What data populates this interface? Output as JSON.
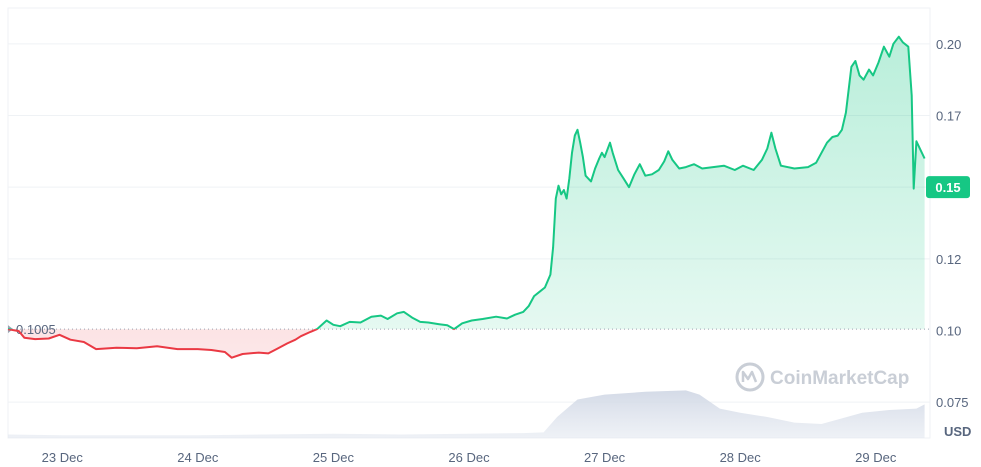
{
  "chart_data": {
    "type": "line",
    "currency_label": "USD",
    "watermark": "CoinMarketCap",
    "reference_value": 0.1005,
    "reference_label": "0.1005",
    "current_value": 0.15,
    "current_label": "0.15",
    "ylim": [
      0.0625,
      0.2125
    ],
    "y_ticks": [
      {
        "value": 0.075,
        "label": "0.075"
      },
      {
        "value": 0.1,
        "label": "0.10"
      },
      {
        "value": 0.125,
        "label": "0.12"
      },
      {
        "value": 0.15,
        "label": "0.15"
      },
      {
        "value": 0.175,
        "label": "0.17"
      },
      {
        "value": 0.2,
        "label": "0.20"
      }
    ],
    "x_range": [
      22.6,
      29.4
    ],
    "x_ticks": [
      {
        "value": 23,
        "label": "23 Dec"
      },
      {
        "value": 24,
        "label": "24 Dec"
      },
      {
        "value": 25,
        "label": "25 Dec"
      },
      {
        "value": 26,
        "label": "26 Dec"
      },
      {
        "value": 27,
        "label": "27 Dec"
      },
      {
        "value": 28,
        "label": "28 Dec"
      },
      {
        "value": 29,
        "label": "29 Dec"
      }
    ],
    "series": [
      {
        "values": [
          [
            22.6,
            0.1005
          ],
          [
            22.68,
            0.0998
          ],
          [
            22.72,
            0.0975
          ],
          [
            22.8,
            0.097
          ],
          [
            22.9,
            0.0972
          ],
          [
            22.98,
            0.0985
          ],
          [
            23.06,
            0.0968
          ],
          [
            23.16,
            0.096
          ],
          [
            23.25,
            0.0935
          ],
          [
            23.4,
            0.094
          ],
          [
            23.55,
            0.0938
          ],
          [
            23.7,
            0.0945
          ],
          [
            23.85,
            0.0935
          ],
          [
            24.0,
            0.0935
          ],
          [
            24.1,
            0.0932
          ],
          [
            24.2,
            0.0925
          ],
          [
            24.25,
            0.0905
          ],
          [
            24.33,
            0.0918
          ],
          [
            24.45,
            0.0923
          ],
          [
            24.52,
            0.092
          ],
          [
            24.58,
            0.0935
          ],
          [
            24.66,
            0.0955
          ],
          [
            24.72,
            0.0968
          ],
          [
            24.76,
            0.098
          ],
          [
            24.83,
            0.0995
          ],
          [
            24.88,
            0.1005
          ],
          [
            24.95,
            0.1035
          ],
          [
            25.0,
            0.102
          ],
          [
            25.05,
            0.1015
          ],
          [
            25.12,
            0.103
          ],
          [
            25.2,
            0.1028
          ],
          [
            25.28,
            0.1048
          ],
          [
            25.35,
            0.1052
          ],
          [
            25.4,
            0.104
          ],
          [
            25.47,
            0.106
          ],
          [
            25.52,
            0.1065
          ],
          [
            25.58,
            0.1045
          ],
          [
            25.64,
            0.103
          ],
          [
            25.7,
            0.1028
          ],
          [
            25.78,
            0.1022
          ],
          [
            25.84,
            0.1018
          ],
          [
            25.89,
            0.1005
          ],
          [
            25.95,
            0.1025
          ],
          [
            26.02,
            0.1035
          ],
          [
            26.1,
            0.104
          ],
          [
            26.2,
            0.1048
          ],
          [
            26.28,
            0.1042
          ],
          [
            26.34,
            0.1055
          ],
          [
            26.4,
            0.1065
          ],
          [
            26.44,
            0.1085
          ],
          [
            26.48,
            0.112
          ],
          [
            26.52,
            0.1135
          ],
          [
            26.56,
            0.115
          ],
          [
            26.6,
            0.1195
          ],
          [
            26.62,
            0.129
          ],
          [
            26.64,
            0.146
          ],
          [
            26.66,
            0.1505
          ],
          [
            26.68,
            0.1475
          ],
          [
            26.7,
            0.149
          ],
          [
            26.72,
            0.146
          ],
          [
            26.74,
            0.153
          ],
          [
            26.76,
            0.162
          ],
          [
            26.78,
            0.168
          ],
          [
            26.8,
            0.17
          ],
          [
            26.82,
            0.1655
          ],
          [
            26.84,
            0.1605
          ],
          [
            26.86,
            0.154
          ],
          [
            26.9,
            0.152
          ],
          [
            26.93,
            0.1565
          ],
          [
            26.96,
            0.16
          ],
          [
            26.98,
            0.162
          ],
          [
            27.0,
            0.1605
          ],
          [
            27.04,
            0.1655
          ],
          [
            27.06,
            0.162
          ],
          [
            27.1,
            0.156
          ],
          [
            27.14,
            0.153
          ],
          [
            27.18,
            0.15
          ],
          [
            27.22,
            0.1545
          ],
          [
            27.26,
            0.158
          ],
          [
            27.3,
            0.154
          ],
          [
            27.35,
            0.1545
          ],
          [
            27.4,
            0.156
          ],
          [
            27.44,
            0.159
          ],
          [
            27.47,
            0.1625
          ],
          [
            27.5,
            0.1595
          ],
          [
            27.55,
            0.1565
          ],
          [
            27.6,
            0.157
          ],
          [
            27.66,
            0.158
          ],
          [
            27.72,
            0.1565
          ],
          [
            27.8,
            0.157
          ],
          [
            27.88,
            0.1575
          ],
          [
            27.96,
            0.156
          ],
          [
            28.02,
            0.1575
          ],
          [
            28.1,
            0.156
          ],
          [
            28.16,
            0.1595
          ],
          [
            28.2,
            0.1635
          ],
          [
            28.23,
            0.169
          ],
          [
            28.26,
            0.1635
          ],
          [
            28.3,
            0.1575
          ],
          [
            28.4,
            0.1565
          ],
          [
            28.5,
            0.157
          ],
          [
            28.56,
            0.1585
          ],
          [
            28.6,
            0.162
          ],
          [
            28.64,
            0.1655
          ],
          [
            28.68,
            0.1675
          ],
          [
            28.72,
            0.168
          ],
          [
            28.75,
            0.17
          ],
          [
            28.78,
            0.176
          ],
          [
            28.82,
            0.192
          ],
          [
            28.85,
            0.194
          ],
          [
            28.88,
            0.189
          ],
          [
            28.91,
            0.1875
          ],
          [
            28.95,
            0.191
          ],
          [
            28.98,
            0.189
          ],
          [
            29.02,
            0.1935
          ],
          [
            29.06,
            0.199
          ],
          [
            29.1,
            0.1955
          ],
          [
            29.13,
            0.2
          ],
          [
            29.17,
            0.2025
          ],
          [
            29.2,
            0.2005
          ],
          [
            29.24,
            0.199
          ],
          [
            29.265,
            0.182
          ],
          [
            29.28,
            0.1495
          ],
          [
            29.3,
            0.166
          ],
          [
            29.33,
            0.163
          ],
          [
            29.36,
            0.16
          ]
        ]
      }
    ],
    "volume": [
      [
        22.6,
        0.05
      ],
      [
        23.0,
        0.04
      ],
      [
        23.5,
        0.04
      ],
      [
        24.0,
        0.04
      ],
      [
        24.5,
        0.05
      ],
      [
        25.0,
        0.06
      ],
      [
        25.5,
        0.05
      ],
      [
        26.0,
        0.06
      ],
      [
        26.4,
        0.07
      ],
      [
        26.55,
        0.08
      ],
      [
        26.65,
        0.3
      ],
      [
        26.8,
        0.55
      ],
      [
        27.0,
        0.62
      ],
      [
        27.3,
        0.66
      ],
      [
        27.6,
        0.68
      ],
      [
        27.7,
        0.62
      ],
      [
        27.85,
        0.42
      ],
      [
        28.0,
        0.36
      ],
      [
        28.2,
        0.3
      ],
      [
        28.4,
        0.22
      ],
      [
        28.6,
        0.2
      ],
      [
        28.75,
        0.28
      ],
      [
        28.9,
        0.36
      ],
      [
        29.1,
        0.4
      ],
      [
        29.3,
        0.42
      ],
      [
        29.36,
        0.48
      ]
    ]
  }
}
